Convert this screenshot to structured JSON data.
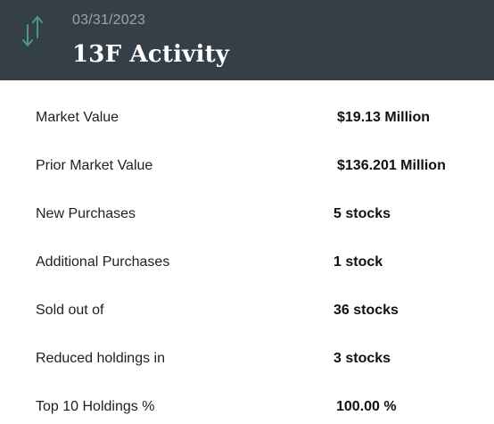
{
  "header": {
    "date": "03/31/2023",
    "title": "13F Activity",
    "icon": "up-down-arrows-icon",
    "icon_color": "#4a9a80",
    "background": "#343f48"
  },
  "rows": [
    {
      "label": "Market Value",
      "value": "$19.13 Million"
    },
    {
      "label": "Prior Market Value",
      "value": "$136.201 Million"
    },
    {
      "label": "New Purchases",
      "value": "5 stocks"
    },
    {
      "label": "Additional Purchases",
      "value": "1 stock"
    },
    {
      "label": "Sold out of",
      "value": "36 stocks"
    },
    {
      "label": "Reduced holdings in",
      "value": "3 stocks"
    },
    {
      "label": "Top 10 Holdings %",
      "value": "100.00 %"
    }
  ]
}
